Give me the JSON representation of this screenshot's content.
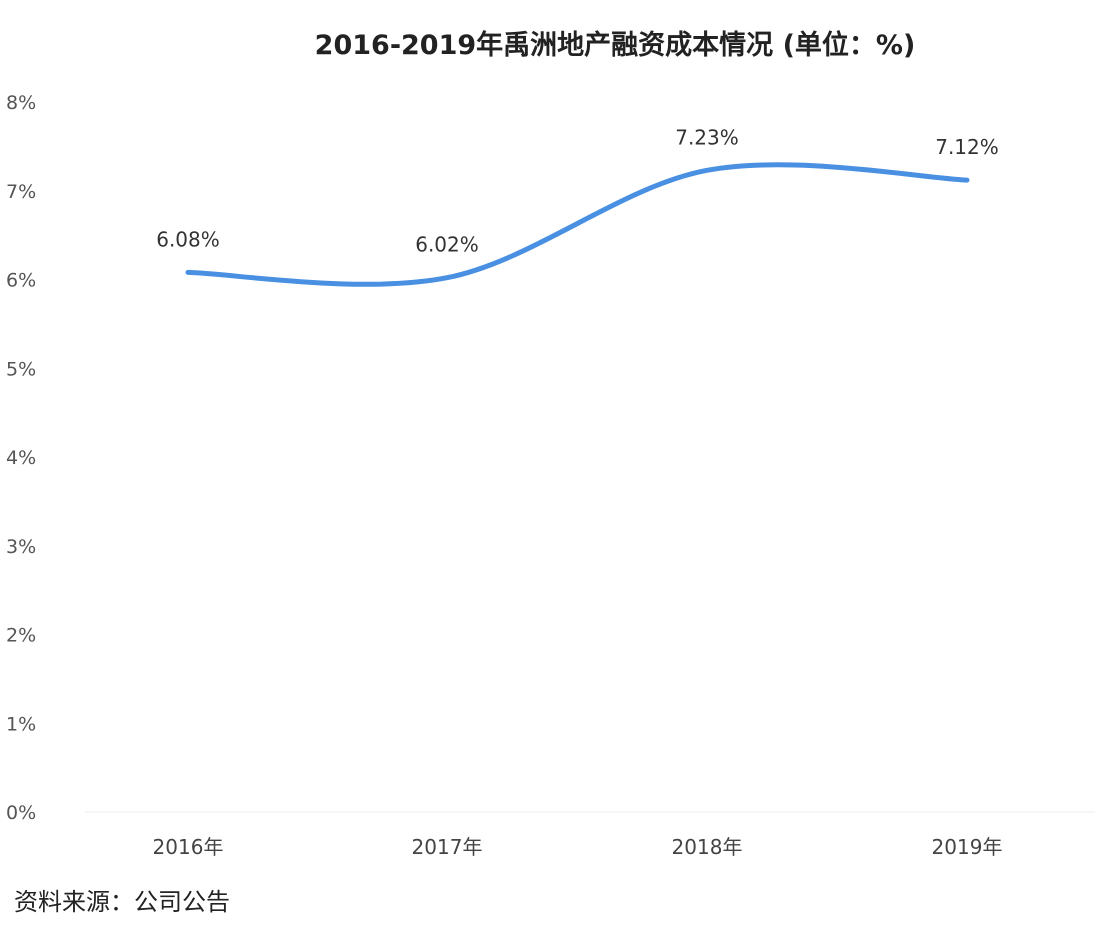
{
  "chart_data": {
    "type": "line",
    "title": "2016-2019年禹洲地产融资成本情况 (单位：%)",
    "categories": [
      "2016年",
      "2017年",
      "2018年",
      "2019年"
    ],
    "series": [
      {
        "values": [
          6.08,
          6.02,
          7.23,
          7.12
        ],
        "labels": [
          "6.08%",
          "6.02%",
          "7.23%",
          "7.12%"
        ],
        "color": "#4A90E2"
      }
    ],
    "ylim": [
      0,
      8
    ],
    "yticks": [
      0,
      1,
      2,
      3,
      4,
      5,
      6,
      7,
      8
    ],
    "ytick_labels": [
      "0%",
      "1%",
      "2%",
      "3%",
      "4%",
      "5%",
      "6%",
      "7%",
      "8%"
    ],
    "xlabel": "",
    "ylabel": "",
    "grid": false,
    "legend": "none",
    "smooth": true
  },
  "footer": {
    "source": "资料来源：公司公告"
  }
}
